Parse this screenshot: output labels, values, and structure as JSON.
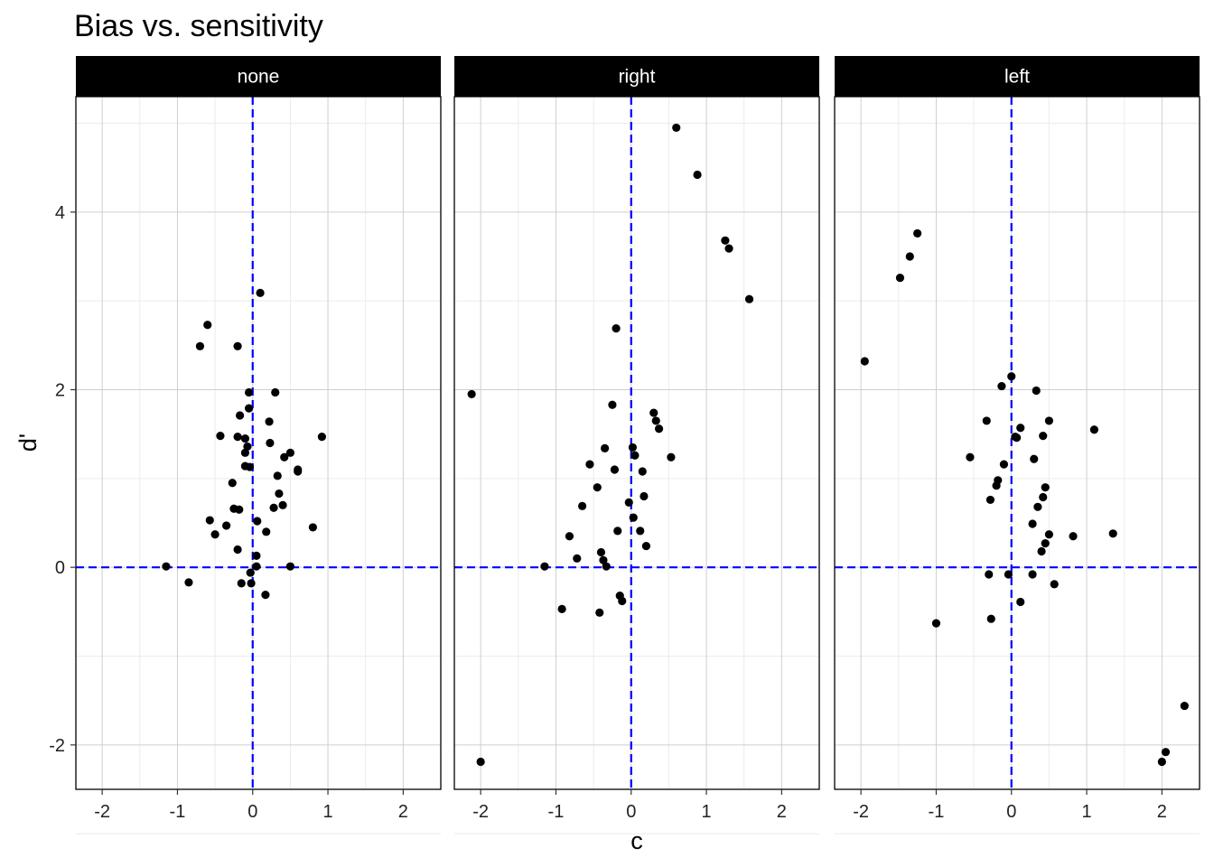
{
  "chart_data": {
    "type": "scatter",
    "title": "Bias vs. sensitivity",
    "xlabel": "c",
    "ylabel": "d'",
    "xlim": [
      -2.35,
      2.5
    ],
    "ylim": [
      -2.5,
      5.3
    ],
    "x_ticks": [
      -2,
      -1,
      0,
      1,
      2
    ],
    "x_tick_labels": [
      "-2",
      "-1",
      "0",
      "1",
      "2"
    ],
    "y_ticks": [
      -2,
      0,
      2,
      4
    ],
    "y_tick_labels": [
      "-2",
      "0",
      "2",
      "4"
    ],
    "reference_lines": {
      "x": 0,
      "y": 0,
      "style": "dashed",
      "color": "#0000ff"
    },
    "grid": true,
    "point_color": "#000000",
    "strip_color": "#000000",
    "panels": [
      {
        "label": "none",
        "points": [
          [
            0.1,
            3.09
          ],
          [
            -0.6,
            2.73
          ],
          [
            -0.7,
            2.49
          ],
          [
            -0.2,
            2.49
          ],
          [
            -0.05,
            1.97
          ],
          [
            0.3,
            1.97
          ],
          [
            -0.05,
            1.79
          ],
          [
            -0.17,
            1.71
          ],
          [
            0.22,
            1.64
          ],
          [
            -0.43,
            1.48
          ],
          [
            -0.2,
            1.47
          ],
          [
            -0.1,
            1.45
          ],
          [
            0.92,
            1.47
          ],
          [
            0.23,
            1.4
          ],
          [
            -0.07,
            1.36
          ],
          [
            -0.1,
            1.29
          ],
          [
            0.5,
            1.29
          ],
          [
            0.42,
            1.24
          ],
          [
            -0.1,
            1.14
          ],
          [
            -0.04,
            1.13
          ],
          [
            0.6,
            1.1
          ],
          [
            0.6,
            1.08
          ],
          [
            0.33,
            1.03
          ],
          [
            -0.27,
            0.95
          ],
          [
            0.35,
            0.83
          ],
          [
            0.4,
            0.7
          ],
          [
            0.28,
            0.67
          ],
          [
            -0.25,
            0.66
          ],
          [
            -0.18,
            0.65
          ],
          [
            -0.57,
            0.53
          ],
          [
            0.06,
            0.52
          ],
          [
            -0.35,
            0.47
          ],
          [
            0.8,
            0.45
          ],
          [
            0.18,
            0.4
          ],
          [
            -0.5,
            0.37
          ],
          [
            -0.2,
            0.2
          ],
          [
            0.05,
            0.13
          ],
          [
            -1.15,
            0.01
          ],
          [
            0.05,
            0.01
          ],
          [
            0.5,
            0.01
          ],
          [
            -0.03,
            -0.06
          ],
          [
            -0.85,
            -0.17
          ],
          [
            -0.15,
            -0.18
          ],
          [
            -0.02,
            -0.18
          ],
          [
            0.17,
            -0.31
          ]
        ]
      },
      {
        "label": "right",
        "points": [
          [
            0.6,
            4.95
          ],
          [
            0.88,
            4.42
          ],
          [
            1.25,
            3.68
          ],
          [
            1.3,
            3.59
          ],
          [
            1.57,
            3.02
          ],
          [
            -0.2,
            2.69
          ],
          [
            -2.12,
            1.95
          ],
          [
            -0.25,
            1.83
          ],
          [
            0.3,
            1.74
          ],
          [
            0.33,
            1.65
          ],
          [
            0.37,
            1.56
          ],
          [
            -0.35,
            1.34
          ],
          [
            0.02,
            1.35
          ],
          [
            0.05,
            1.26
          ],
          [
            0.53,
            1.24
          ],
          [
            -0.55,
            1.16
          ],
          [
            -0.22,
            1.1
          ],
          [
            0.15,
            1.08
          ],
          [
            -0.45,
            0.9
          ],
          [
            0.17,
            0.8
          ],
          [
            -0.03,
            0.73
          ],
          [
            -0.65,
            0.69
          ],
          [
            0.03,
            0.56
          ],
          [
            -0.18,
            0.41
          ],
          [
            0.12,
            0.41
          ],
          [
            -0.82,
            0.35
          ],
          [
            0.2,
            0.24
          ],
          [
            -0.4,
            0.17
          ],
          [
            -0.72,
            0.1
          ],
          [
            -0.37,
            0.08
          ],
          [
            -1.15,
            0.01
          ],
          [
            -0.33,
            0.01
          ],
          [
            -0.15,
            -0.32
          ],
          [
            -0.12,
            -0.38
          ],
          [
            -0.92,
            -0.47
          ],
          [
            -0.42,
            -0.51
          ],
          [
            -2.0,
            -2.19
          ]
        ]
      },
      {
        "label": "left",
        "points": [
          [
            -1.25,
            3.76
          ],
          [
            -1.35,
            3.5
          ],
          [
            -1.48,
            3.26
          ],
          [
            -1.95,
            2.32
          ],
          [
            0.0,
            2.15
          ],
          [
            -0.13,
            2.04
          ],
          [
            0.33,
            1.99
          ],
          [
            -0.33,
            1.65
          ],
          [
            0.5,
            1.65
          ],
          [
            0.12,
            1.57
          ],
          [
            1.1,
            1.55
          ],
          [
            0.05,
            1.47
          ],
          [
            0.42,
            1.48
          ],
          [
            0.07,
            1.46
          ],
          [
            -0.55,
            1.24
          ],
          [
            0.3,
            1.22
          ],
          [
            -0.1,
            1.16
          ],
          [
            -0.18,
            0.98
          ],
          [
            -0.2,
            0.92
          ],
          [
            0.45,
            0.9
          ],
          [
            0.42,
            0.79
          ],
          [
            -0.28,
            0.76
          ],
          [
            0.35,
            0.68
          ],
          [
            0.28,
            0.49
          ],
          [
            0.45,
            0.27
          ],
          [
            0.5,
            0.37
          ],
          [
            0.82,
            0.35
          ],
          [
            1.35,
            0.38
          ],
          [
            0.4,
            0.18
          ],
          [
            -0.3,
            -0.08
          ],
          [
            -0.04,
            -0.08
          ],
          [
            0.28,
            -0.08
          ],
          [
            0.57,
            -0.19
          ],
          [
            0.12,
            -0.39
          ],
          [
            -0.27,
            -0.58
          ],
          [
            -1.0,
            -0.63
          ],
          [
            2.3,
            -1.56
          ],
          [
            2.05,
            -2.08
          ],
          [
            2.0,
            -2.19
          ]
        ]
      }
    ]
  }
}
